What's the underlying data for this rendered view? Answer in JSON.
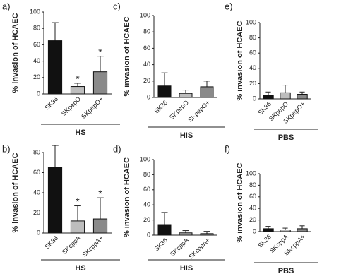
{
  "chart_data": [
    {
      "type": "bar",
      "panel_label": "a)",
      "ylabel": "% invasion of HCAEC",
      "categories": [
        "SK36",
        "SKpepO",
        "SKpepO+"
      ],
      "values": [
        65,
        9,
        27
      ],
      "errors": [
        22,
        4,
        19
      ],
      "colors": [
        "#111111",
        "#bdbdbd",
        "#8a8a8a"
      ],
      "ylim": [
        0,
        100
      ],
      "yticks": [
        0,
        20,
        40,
        60,
        80,
        100
      ],
      "group_label": "HS",
      "annotations": [
        {
          "category": "SKpepO",
          "text": "*"
        },
        {
          "category": "SKpepO+",
          "text": "*"
        }
      ]
    },
    {
      "type": "bar",
      "panel_label": "c)",
      "ylabel": "% invasion of HCAEC",
      "categories": [
        "SK36",
        "SKpepO",
        "SKpepO+"
      ],
      "values": [
        14,
        5,
        13
      ],
      "errors": [
        16,
        4,
        7
      ],
      "colors": [
        "#111111",
        "#bdbdbd",
        "#8a8a8a"
      ],
      "ylim": [
        0,
        100
      ],
      "yticks": [
        0,
        20,
        40,
        60,
        80,
        100
      ],
      "group_label": "HIS"
    },
    {
      "type": "bar",
      "panel_label": "e)",
      "ylabel": "% invasion of HCAEC",
      "categories": [
        "SK36",
        "SKpepO",
        "SKpepO+"
      ],
      "values": [
        5,
        8,
        6
      ],
      "errors": [
        4,
        10,
        3
      ],
      "colors": [
        "#111111",
        "#bdbdbd",
        "#8a8a8a"
      ],
      "ylim": [
        0,
        100
      ],
      "yticks": [
        0,
        20,
        40,
        60,
        80,
        100
      ],
      "group_label": "PBS"
    },
    {
      "type": "bar",
      "panel_label": "b)",
      "ylabel": "% invasion of HCAEC",
      "categories": [
        "SK36",
        "SKcppA",
        "SKcppA+"
      ],
      "values": [
        65,
        12,
        14
      ],
      "errors": [
        22,
        15,
        21
      ],
      "colors": [
        "#111111",
        "#bdbdbd",
        "#8a8a8a"
      ],
      "ylim": [
        0,
        80
      ],
      "yticks": [
        0,
        20,
        40,
        60,
        80
      ],
      "group_label": "HS",
      "annotations": [
        {
          "category": "SKcppA",
          "text": "*"
        },
        {
          "category": "SKcppA+",
          "text": "*"
        }
      ]
    },
    {
      "type": "bar",
      "panel_label": "d)",
      "ylabel": "% invasion of HCAEC",
      "categories": [
        "SK36",
        "SKcppA",
        "SKcppA+"
      ],
      "values": [
        14,
        3,
        2
      ],
      "errors": [
        16,
        3,
        3
      ],
      "colors": [
        "#111111",
        "#bdbdbd",
        "#8a8a8a"
      ],
      "ylim": [
        0,
        100
      ],
      "yticks": [
        0,
        20,
        40,
        60,
        80,
        100
      ],
      "group_label": "HIS"
    },
    {
      "type": "bar",
      "panel_label": "f)",
      "ylabel": "% invasion of HCAEC",
      "categories": [
        "SK36",
        "SKcppA",
        "SKcppA+"
      ],
      "values": [
        5,
        3,
        5
      ],
      "errors": [
        4,
        3,
        5
      ],
      "colors": [
        "#111111",
        "#bdbdbd",
        "#8a8a8a"
      ],
      "ylim": [
        0,
        100
      ],
      "yticks": [
        0,
        20,
        40,
        60,
        80,
        100
      ],
      "group_label": "PBS"
    }
  ]
}
